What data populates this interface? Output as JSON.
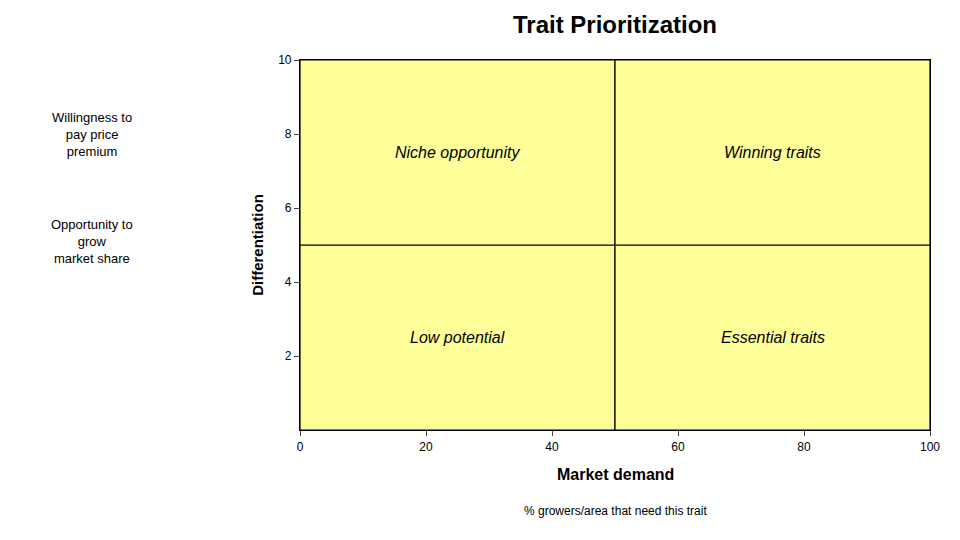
{
  "chart_data": {
    "type": "quadrant",
    "title": "Trait Prioritization",
    "xlabel": "Market demand",
    "xlabel_subtitle": "% growers/area that need this trait",
    "ylabel": "Differentiation",
    "xlim": [
      0,
      100
    ],
    "ylim": [
      0,
      10
    ],
    "xticks": [
      0,
      20,
      40,
      60,
      80,
      100
    ],
    "yticks": [
      2,
      4,
      6,
      8,
      10
    ],
    "divider_x": 50,
    "divider_y": 5,
    "color": "#ffff99",
    "quadrants": [
      {
        "label": "Niche opportunity",
        "x": 25,
        "y": 7.5
      },
      {
        "label": "Winning traits",
        "x": 75,
        "y": 7.5
      },
      {
        "label": "Low potential",
        "x": 25,
        "y": 2.5
      },
      {
        "label": "Essential traits",
        "x": 75,
        "y": 2.5
      }
    ],
    "annotations": [
      "Willingness to\npay price\npremium",
      "Opportunity to\ngrow\nmarket share"
    ],
    "grid": false
  }
}
